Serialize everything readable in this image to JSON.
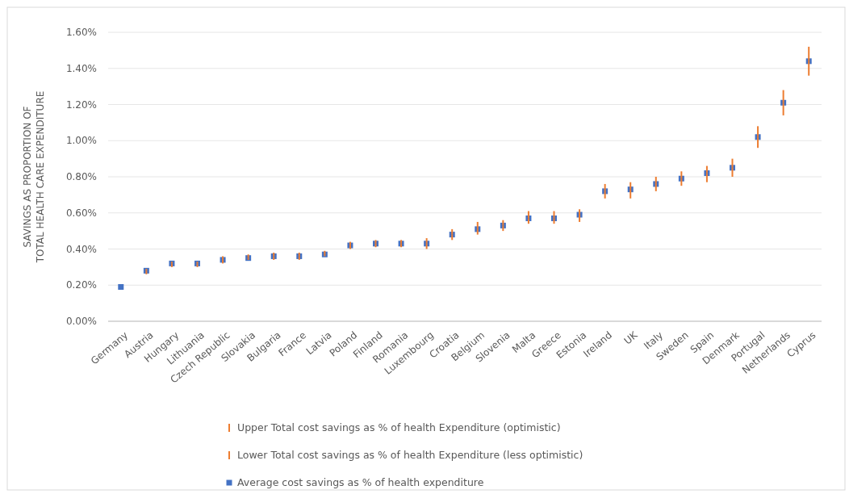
{
  "chart_data": {
    "type": "scatter",
    "ylabel": "SAVINGS AS PROPORTION OF\nTOTAL HEALTH CARE EXPENDITURE",
    "categories": [
      "Germany",
      "Austria",
      "Hungary",
      "Lithuania",
      "Czech Republic",
      "Slovakia",
      "Bulgaria",
      "France",
      "Latvia",
      "Poland",
      "Finland",
      "Romania",
      "Luxembourg",
      "Croatia",
      "Belgium",
      "Slovenia",
      "Malta",
      "Greece",
      "Estonia",
      "Ireland",
      "UK",
      "Italy",
      "Sweden",
      "Spain",
      "Denmark",
      "Portugal",
      "Netherlands",
      "Cyprus"
    ],
    "series": [
      {
        "name": "Upper Total cost savings as % of health Expenditure (optimistic)",
        "type": "bar",
        "color": "#ed7d31",
        "base": [
          null,
          0.28,
          0.32,
          0.32,
          0.34,
          0.35,
          0.36,
          0.36,
          0.37,
          0.42,
          0.43,
          0.43,
          0.43,
          0.48,
          0.51,
          0.53,
          0.57,
          0.57,
          0.59,
          0.72,
          0.73,
          0.76,
          0.79,
          0.82,
          0.85,
          1.02,
          1.21,
          1.44
        ],
        "values": [
          null,
          0.01,
          0.01,
          0.01,
          0.02,
          0.02,
          0.02,
          0.02,
          0.02,
          0.02,
          0.02,
          0.02,
          0.03,
          0.03,
          0.04,
          0.03,
          0.04,
          0.04,
          0.03,
          0.04,
          0.04,
          0.04,
          0.04,
          0.04,
          0.05,
          0.06,
          0.07,
          0.08
        ]
      },
      {
        "name": "Lower Total cost savings as % of health Expenditure (less optimistic)",
        "type": "bar",
        "color": "#ed7d31",
        "base": [
          null,
          0.26,
          0.3,
          0.3,
          0.32,
          0.34,
          0.34,
          0.34,
          0.36,
          0.4,
          0.41,
          0.41,
          0.4,
          0.45,
          0.48,
          0.5,
          0.54,
          0.54,
          0.55,
          0.68,
          0.68,
          0.72,
          0.75,
          0.77,
          0.8,
          0.96,
          1.14,
          1.36
        ],
        "values": [
          null,
          0.02,
          0.02,
          0.02,
          0.02,
          0.01,
          0.02,
          0.02,
          0.01,
          0.02,
          0.02,
          0.02,
          0.03,
          0.03,
          0.03,
          0.03,
          0.03,
          0.03,
          0.04,
          0.04,
          0.05,
          0.04,
          0.04,
          0.05,
          0.05,
          0.06,
          0.07,
          0.08
        ]
      },
      {
        "name": "Average cost savings as % of health expenditure",
        "color": "#4472c4",
        "marker": "square",
        "values": [
          0.19,
          0.28,
          0.32,
          0.32,
          0.34,
          0.35,
          0.36,
          0.36,
          0.37,
          0.42,
          0.43,
          0.43,
          0.43,
          0.48,
          0.51,
          0.53,
          0.57,
          0.57,
          0.59,
          0.72,
          0.73,
          0.76,
          0.79,
          0.82,
          0.85,
          1.02,
          1.21,
          1.44
        ]
      }
    ],
    "ylim": [
      0,
      1.6
    ],
    "yticks": [
      {
        "value": 0,
        "label": "0.00%"
      },
      {
        "value": 0.2,
        "label": "0.20%"
      },
      {
        "value": 0.4,
        "label": "0.40%"
      },
      {
        "value": 0.6,
        "label": "0.60%"
      },
      {
        "value": 0.8,
        "label": "0.80%"
      },
      {
        "value": 1.0,
        "label": "1.00%"
      },
      {
        "value": 1.2,
        "label": "1.20%"
      },
      {
        "value": 1.4,
        "label": "1.40%"
      },
      {
        "value": 1.6,
        "label": "1.60%"
      }
    ],
    "grid": "y",
    "legend": "bottom"
  }
}
